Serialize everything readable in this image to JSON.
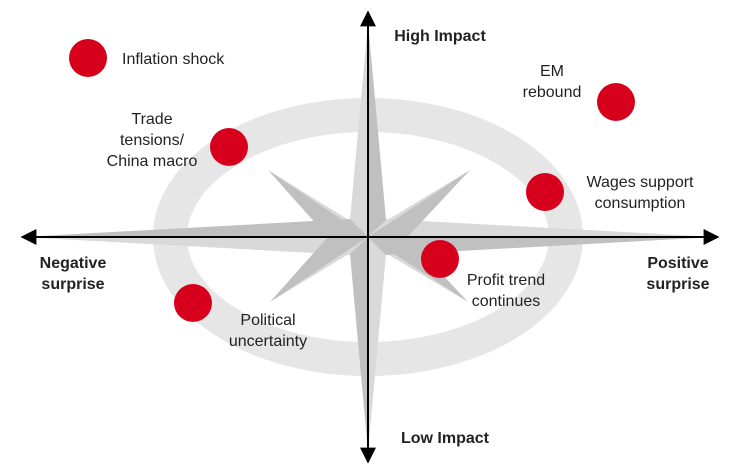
{
  "axes": {
    "top": [
      "High Impact"
    ],
    "bottom": [
      "Low Impact"
    ],
    "left": [
      "Negative",
      "surprise"
    ],
    "right": [
      "Positive",
      "surprise"
    ]
  },
  "nodes": [
    {
      "label": [
        "Inflation shock"
      ]
    },
    {
      "label": [
        "EM",
        "rebound"
      ]
    },
    {
      "label": [
        "Trade",
        "tensions/",
        "China macro"
      ]
    },
    {
      "label": [
        "Wages support",
        "consumption"
      ]
    },
    {
      "label": [
        "Profit trend",
        "continues"
      ]
    },
    {
      "label": [
        "Political",
        "uncertainty"
      ]
    }
  ]
}
